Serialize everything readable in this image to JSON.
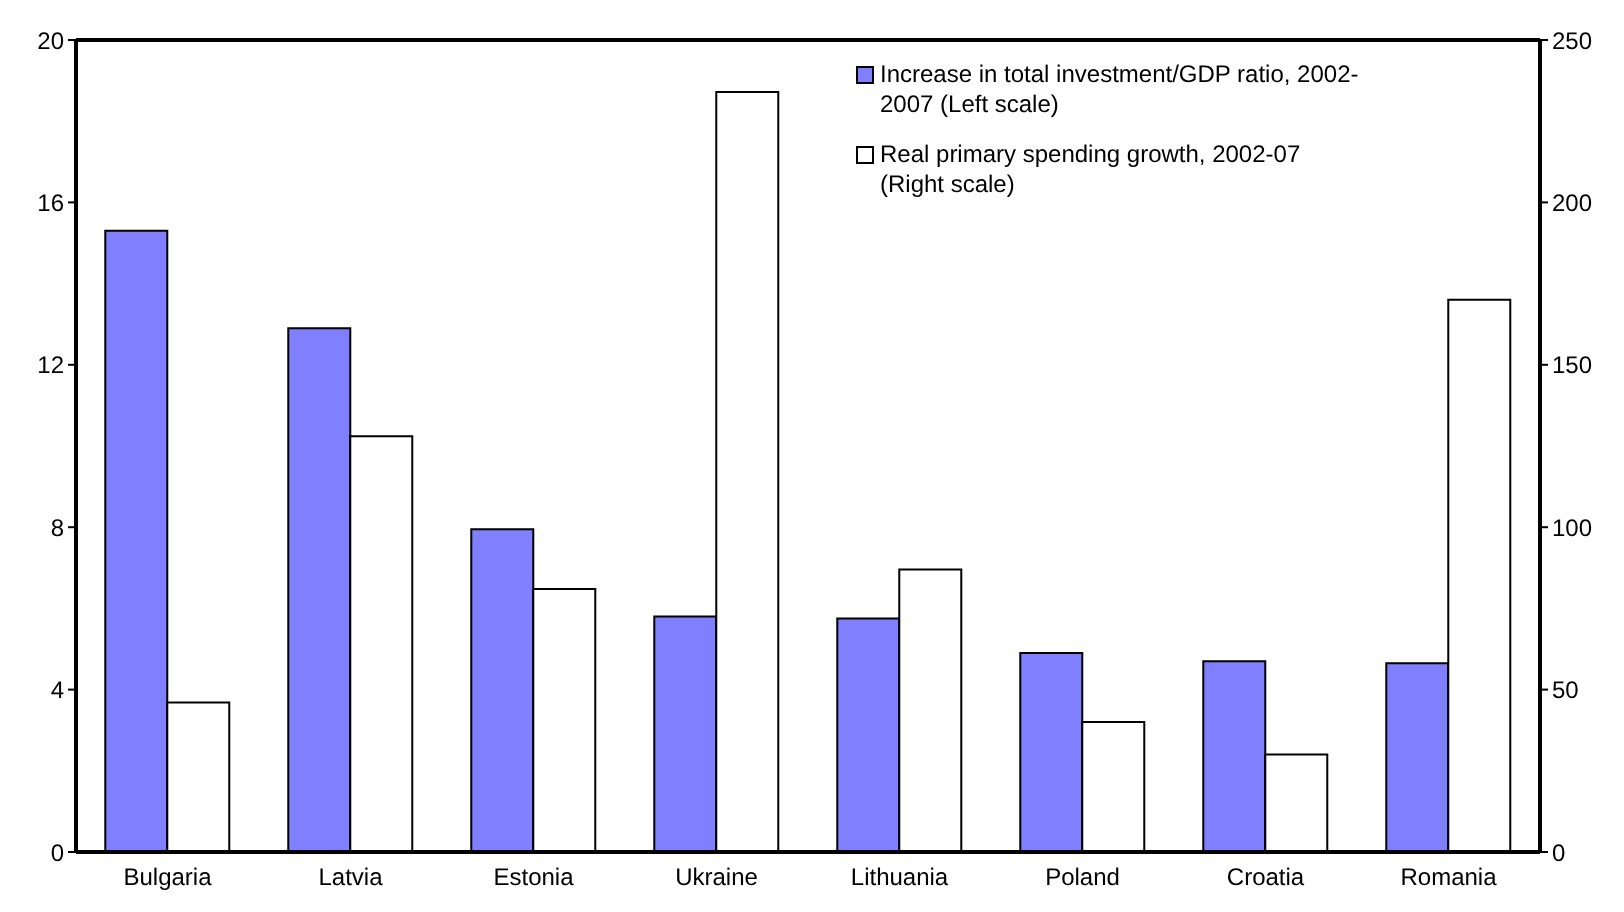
{
  "chart_data": {
    "type": "bar",
    "categories": [
      "Bulgaria",
      "Latvia",
      "Estonia",
      "Ukraine",
      "Lithuania",
      "Poland",
      "Croatia",
      "Romania"
    ],
    "series": [
      {
        "name": "Increase in total investment/GDP ratio, 2002-2007 (Left scale)",
        "color": "#8080ff",
        "values": [
          15.3,
          12.9,
          7.95,
          5.8,
          5.75,
          4.9,
          4.7,
          4.65
        ]
      },
      {
        "name": "Real primary spending growth, 2002-07 (Right scale)",
        "color": "#ffffff",
        "axis": "y2",
        "values": [
          46,
          128,
          81,
          234,
          87,
          40,
          30,
          170
        ]
      }
    ],
    "ylim": [
      0,
      20
    ],
    "yticks": [
      0,
      4,
      8,
      12,
      16,
      20
    ],
    "y2lim": [
      0,
      250
    ],
    "y2ticks": [
      0,
      50,
      100,
      150,
      200,
      250
    ],
    "grid": false,
    "legend": "top"
  }
}
